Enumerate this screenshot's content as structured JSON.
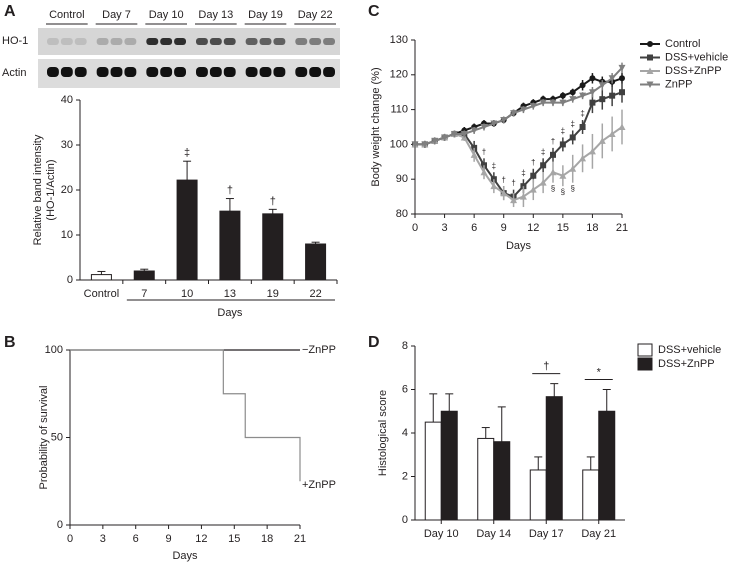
{
  "chart_data": [
    {
      "panel": "A",
      "type": "bar",
      "blot_labels": [
        "Control",
        "Day 7",
        "Day 10",
        "Day 13",
        "Day 19",
        "Day 22"
      ],
      "blot_rows": [
        "HO-1",
        "Actin"
      ],
      "ylabel": [
        "Relative band intensity",
        "(HO-1/Actin)"
      ],
      "xlabel": "Days",
      "categories": [
        "Control",
        "7",
        "10",
        "13",
        "19",
        "22"
      ],
      "values": [
        1.2,
        2.0,
        22.2,
        15.3,
        14.7,
        8.0
      ],
      "errors": [
        0.7,
        0.4,
        4.2,
        2.8,
        1.0,
        0.4
      ],
      "significance": [
        null,
        null,
        "‡",
        "†",
        "†",
        null
      ],
      "colors": [
        "#ffffff",
        "#231f20",
        "#231f20",
        "#231f20",
        "#231f20",
        "#231f20"
      ],
      "ylim": [
        0,
        40
      ],
      "yticks": [
        0,
        10,
        20,
        30,
        40
      ]
    },
    {
      "panel": "B",
      "type": "step",
      "xlabel": "Days",
      "ylabel": "Probability of survival",
      "xlim": [
        0,
        21
      ],
      "xticks": [
        0,
        3,
        6,
        9,
        12,
        15,
        18,
        21
      ],
      "ylim": [
        0,
        100
      ],
      "yticks": [
        0,
        50,
        100
      ],
      "series": [
        {
          "name": "−ZnPP",
          "color": "#231f20",
          "x": [
            0,
            21
          ],
          "values": [
            100,
            100
          ]
        },
        {
          "name": "+ZnPP",
          "color": "#8c8c8c",
          "x": [
            0,
            14,
            16,
            21
          ],
          "values": [
            100,
            75,
            50,
            25
          ]
        }
      ]
    },
    {
      "panel": "C",
      "type": "line",
      "xlabel": "Days",
      "ylabel": "Body weight change (%)",
      "xlim": [
        0,
        21
      ],
      "xticks": [
        0,
        3,
        6,
        9,
        12,
        15,
        18,
        21
      ],
      "ylim": [
        80,
        130
      ],
      "yticks": [
        80,
        90,
        100,
        110,
        120,
        130
      ],
      "x": [
        0,
        1,
        2,
        3,
        4,
        5,
        6,
        7,
        8,
        9,
        10,
        11,
        12,
        13,
        14,
        15,
        16,
        17,
        18,
        19,
        20,
        21
      ],
      "series": [
        {
          "name": "Control",
          "color": "#1a1a1a",
          "marker": "circle",
          "values": [
            100,
            100,
            101,
            102,
            103,
            104,
            105,
            106,
            106,
            107,
            109,
            111,
            112,
            113,
            113,
            114,
            115,
            117,
            119,
            118,
            118,
            119
          ],
          "errors": [
            1,
            1,
            1,
            1,
            1,
            1,
            1,
            1,
            1,
            1,
            1,
            1,
            1,
            1,
            1,
            1,
            1,
            1.5,
            1.5,
            1.5,
            1.5,
            1.5
          ]
        },
        {
          "name": "DSS+vehicle",
          "color": "#404040",
          "marker": "square",
          "values": [
            100,
            100,
            101,
            102,
            103,
            103,
            99,
            94,
            90,
            86,
            85,
            88,
            91,
            94,
            97,
            100,
            102,
            105,
            112,
            113,
            114,
            115
          ],
          "errors": [
            1,
            1,
            1,
            1,
            1,
            1,
            2,
            2,
            2,
            2,
            2,
            2,
            2,
            2,
            2,
            2,
            2,
            2,
            3,
            3,
            3,
            3
          ],
          "significance": [
            null,
            null,
            null,
            null,
            null,
            null,
            null,
            "†",
            "‡",
            "†",
            "†",
            "‡",
            "†",
            "‡",
            "†",
            "‡",
            "‡",
            "‡",
            null,
            null,
            null,
            null
          ]
        },
        {
          "name": "DSS+ZnPP",
          "color": "#a6a6a6",
          "marker": "triangle-up",
          "values": [
            100,
            100,
            101,
            102,
            103,
            102,
            97,
            92,
            88,
            86,
            84,
            85,
            87,
            89,
            92,
            91,
            93,
            96,
            98,
            101,
            103,
            105
          ],
          "errors": [
            1,
            1,
            1,
            1,
            1,
            1,
            2,
            2,
            2,
            2,
            2,
            3,
            3,
            3,
            3,
            3,
            4,
            4,
            5,
            5,
            5,
            5
          ],
          "significance": [
            null,
            null,
            null,
            null,
            null,
            null,
            null,
            null,
            null,
            null,
            null,
            null,
            null,
            null,
            "§",
            "§",
            "§",
            null,
            null,
            null,
            null,
            null
          ]
        },
        {
          "name": "ZnPP",
          "color": "#7f7f7f",
          "marker": "triangle-down",
          "values": [
            100,
            100,
            101,
            102,
            103,
            103,
            104,
            105,
            106,
            107,
            109,
            110,
            111,
            112,
            112,
            112,
            113,
            114,
            115,
            117,
            119,
            122
          ],
          "errors": [
            1,
            1,
            1,
            1,
            1,
            1,
            1,
            1,
            1,
            1,
            1,
            1,
            1,
            1,
            1,
            1,
            1,
            1,
            1.5,
            1.5,
            1.5,
            1.5
          ]
        }
      ]
    },
    {
      "panel": "D",
      "type": "grouped-bar",
      "ylabel": "Histological score",
      "categories": [
        "Day 10",
        "Day 14",
        "Day 17",
        "Day 21"
      ],
      "ylim": [
        0,
        8
      ],
      "yticks": [
        0,
        2,
        4,
        6,
        8
      ],
      "significance": [
        null,
        null,
        "†",
        "*"
      ],
      "series": [
        {
          "name": "DSS+vehicle",
          "color": "#ffffff",
          "values": [
            4.5,
            3.75,
            2.3,
            2.3
          ],
          "errors": [
            1.3,
            0.5,
            0.6,
            0.6
          ]
        },
        {
          "name": "DSS+ZnPP",
          "color": "#231f20",
          "values": [
            5.0,
            3.6,
            5.67,
            5.0
          ],
          "errors": [
            0.8,
            1.6,
            0.6,
            1.0
          ]
        }
      ]
    }
  ]
}
